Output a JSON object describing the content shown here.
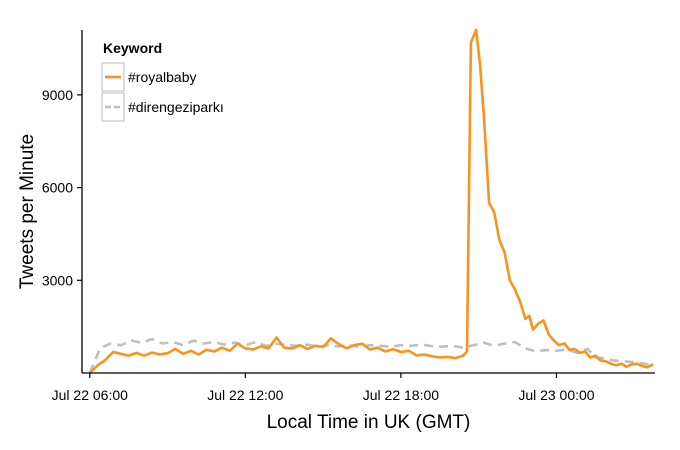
{
  "chart_data": {
    "type": "line",
    "xlabel": "Local Time in UK (GMT)",
    "ylabel": "Tweets per Minute",
    "x_ticks": [
      "Jul 22 06:00",
      "Jul 22 12:00",
      "Jul 22 18:00",
      "Jul 23 00:00"
    ],
    "x_tick_hours": [
      6,
      12,
      18,
      24
    ],
    "y_ticks": [
      3000,
      6000,
      9000
    ],
    "xlim_hours": [
      5.7,
      27.8
    ],
    "ylim": [
      0,
      11100
    ],
    "legend": {
      "title": "Keyword",
      "position": "top-left"
    },
    "grid": false,
    "series": [
      {
        "name": "#royalbaby",
        "color": "#F7941D",
        "style": "solid",
        "points": [
          [
            6.0,
            0
          ],
          [
            6.3,
            250
          ],
          [
            6.6,
            420
          ],
          [
            6.9,
            680
          ],
          [
            7.2,
            620
          ],
          [
            7.5,
            560
          ],
          [
            7.8,
            650
          ],
          [
            8.1,
            560
          ],
          [
            8.4,
            660
          ],
          [
            8.7,
            600
          ],
          [
            9.0,
            640
          ],
          [
            9.3,
            780
          ],
          [
            9.6,
            620
          ],
          [
            9.9,
            720
          ],
          [
            10.2,
            600
          ],
          [
            10.5,
            750
          ],
          [
            10.8,
            700
          ],
          [
            11.1,
            820
          ],
          [
            11.4,
            720
          ],
          [
            11.7,
            950
          ],
          [
            12.0,
            800
          ],
          [
            12.3,
            760
          ],
          [
            12.6,
            860
          ],
          [
            12.9,
            800
          ],
          [
            13.2,
            1150
          ],
          [
            13.5,
            820
          ],
          [
            13.8,
            790
          ],
          [
            14.1,
            900
          ],
          [
            14.4,
            780
          ],
          [
            14.7,
            880
          ],
          [
            15.0,
            840
          ],
          [
            15.3,
            1120
          ],
          [
            15.6,
            940
          ],
          [
            15.9,
            800
          ],
          [
            16.2,
            900
          ],
          [
            16.5,
            950
          ],
          [
            16.8,
            760
          ],
          [
            17.1,
            820
          ],
          [
            17.4,
            700
          ],
          [
            17.7,
            770
          ],
          [
            18.0,
            680
          ],
          [
            18.3,
            720
          ],
          [
            18.6,
            570
          ],
          [
            18.9,
            600
          ],
          [
            19.2,
            540
          ],
          [
            19.5,
            500
          ],
          [
            19.8,
            520
          ],
          [
            20.1,
            480
          ],
          [
            20.4,
            560
          ],
          [
            20.55,
            700
          ],
          [
            20.7,
            10700
          ],
          [
            20.9,
            11100
          ],
          [
            21.05,
            10000
          ],
          [
            21.2,
            8300
          ],
          [
            21.4,
            5500
          ],
          [
            21.6,
            5200
          ],
          [
            21.8,
            4300
          ],
          [
            22.0,
            3900
          ],
          [
            22.2,
            3000
          ],
          [
            22.4,
            2700
          ],
          [
            22.6,
            2300
          ],
          [
            22.8,
            1750
          ],
          [
            22.95,
            1850
          ],
          [
            23.1,
            1400
          ],
          [
            23.3,
            1600
          ],
          [
            23.5,
            1700
          ],
          [
            23.7,
            1250
          ],
          [
            23.9,
            1050
          ],
          [
            24.1,
            900
          ],
          [
            24.3,
            960
          ],
          [
            24.5,
            750
          ],
          [
            24.7,
            780
          ],
          [
            24.9,
            650
          ],
          [
            25.1,
            700
          ],
          [
            25.3,
            500
          ],
          [
            25.5,
            560
          ],
          [
            25.7,
            400
          ],
          [
            25.9,
            380
          ],
          [
            26.1,
            300
          ],
          [
            26.3,
            250
          ],
          [
            26.5,
            300
          ],
          [
            26.7,
            200
          ],
          [
            26.9,
            280
          ],
          [
            27.1,
            300
          ],
          [
            27.3,
            230
          ],
          [
            27.5,
            180
          ],
          [
            27.7,
            270
          ]
        ]
      },
      {
        "name": "#direngeziparkı",
        "color": "#BFBFBF",
        "style": "dashed",
        "points": [
          [
            6.0,
            0
          ],
          [
            6.4,
            800
          ],
          [
            6.8,
            950
          ],
          [
            7.2,
            900
          ],
          [
            7.6,
            1050
          ],
          [
            8.0,
            980
          ],
          [
            8.4,
            1100
          ],
          [
            8.8,
            950
          ],
          [
            9.2,
            1000
          ],
          [
            9.6,
            900
          ],
          [
            10.0,
            1050
          ],
          [
            10.4,
            950
          ],
          [
            10.8,
            1000
          ],
          [
            11.2,
            920
          ],
          [
            11.6,
            980
          ],
          [
            12.0,
            900
          ],
          [
            12.4,
            1000
          ],
          [
            12.8,
            880
          ],
          [
            13.2,
            950
          ],
          [
            13.6,
            900
          ],
          [
            14.0,
            880
          ],
          [
            14.4,
            920
          ],
          [
            14.8,
            850
          ],
          [
            15.2,
            900
          ],
          [
            15.6,
            860
          ],
          [
            16.0,
            900
          ],
          [
            16.4,
            850
          ],
          [
            16.8,
            900
          ],
          [
            17.2,
            880
          ],
          [
            17.6,
            850
          ],
          [
            18.0,
            900
          ],
          [
            18.4,
            880
          ],
          [
            18.8,
            920
          ],
          [
            19.2,
            870
          ],
          [
            19.6,
            850
          ],
          [
            20.0,
            880
          ],
          [
            20.4,
            820
          ],
          [
            20.8,
            900
          ],
          [
            21.2,
            980
          ],
          [
            21.6,
            880
          ],
          [
            22.0,
            950
          ],
          [
            22.4,
            1000
          ],
          [
            22.8,
            800
          ],
          [
            23.2,
            700
          ],
          [
            23.6,
            740
          ],
          [
            24.0,
            720
          ],
          [
            24.4,
            760
          ],
          [
            24.8,
            650
          ],
          [
            25.2,
            780
          ],
          [
            25.5,
            500
          ],
          [
            25.8,
            480
          ],
          [
            26.2,
            400
          ],
          [
            26.6,
            380
          ],
          [
            27.0,
            350
          ],
          [
            27.4,
            300
          ],
          [
            27.7,
            250
          ]
        ]
      }
    ]
  }
}
